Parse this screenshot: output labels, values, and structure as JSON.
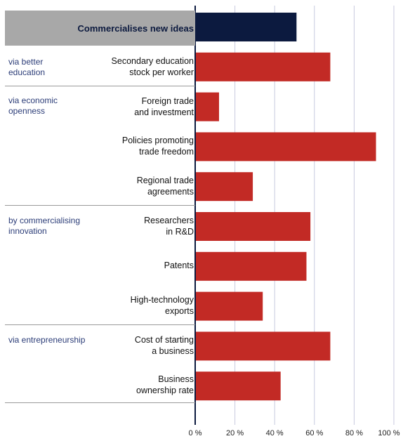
{
  "chart_data": {
    "type": "bar",
    "orientation": "horizontal",
    "header_category": "Commercialises new ideas",
    "header_value": 51,
    "groups": [
      {
        "label": "via better education",
        "items": [
          {
            "category": "Secondary education stock per worker",
            "value": 68
          }
        ]
      },
      {
        "label": "via economic openness",
        "items": [
          {
            "category": "Foreign trade and investment",
            "value": 12
          },
          {
            "category": "Policies promoting trade freedom",
            "value": 91
          },
          {
            "category": "Regional trade agreements",
            "value": 29
          }
        ]
      },
      {
        "label": "by commercialising innovation",
        "items": [
          {
            "category": "Researchers in R&D",
            "value": 58
          },
          {
            "category": "Patents",
            "value": 56
          },
          {
            "category": "High-technology exports",
            "value": 34
          }
        ]
      },
      {
        "label": "via entrepreneurship",
        "items": [
          {
            "category": "Cost of starting a business",
            "value": 68
          },
          {
            "category": "Business ownership rate",
            "value": 43
          }
        ]
      }
    ],
    "xlim": [
      0,
      100
    ],
    "x_ticks": [
      "0 %",
      "20 %",
      "40 %",
      "60 %",
      "80 %",
      "100 %"
    ],
    "grid": true,
    "colors": {
      "header_bar": "#0c1a3f",
      "bars": "#c22a25",
      "grid": "#c8cadf",
      "axis": "#0c1a3f"
    }
  },
  "header": {
    "label": "Commercialises new ideas"
  },
  "group_labels": {
    "education": [
      "via better",
      "education"
    ],
    "openness": [
      "via economic",
      "openness"
    ],
    "innovation": [
      "by commercialising",
      "innovation"
    ],
    "entrepreneurship": "via entrepreneurship"
  },
  "row_labels": {
    "r1": [
      "Secondary education",
      "stock per worker"
    ],
    "r2": [
      "Foreign trade",
      "and investment"
    ],
    "r3": [
      "Policies promoting",
      "trade freedom"
    ],
    "r4": [
      "Regional trade",
      "agreements"
    ],
    "r5": [
      "Researchers",
      "in R&D"
    ],
    "r6": [
      "Patents"
    ],
    "r7": [
      "High-technology",
      "exports"
    ],
    "r8": [
      "Cost of starting",
      "a business"
    ],
    "r9": [
      "Business",
      "ownership rate"
    ]
  }
}
